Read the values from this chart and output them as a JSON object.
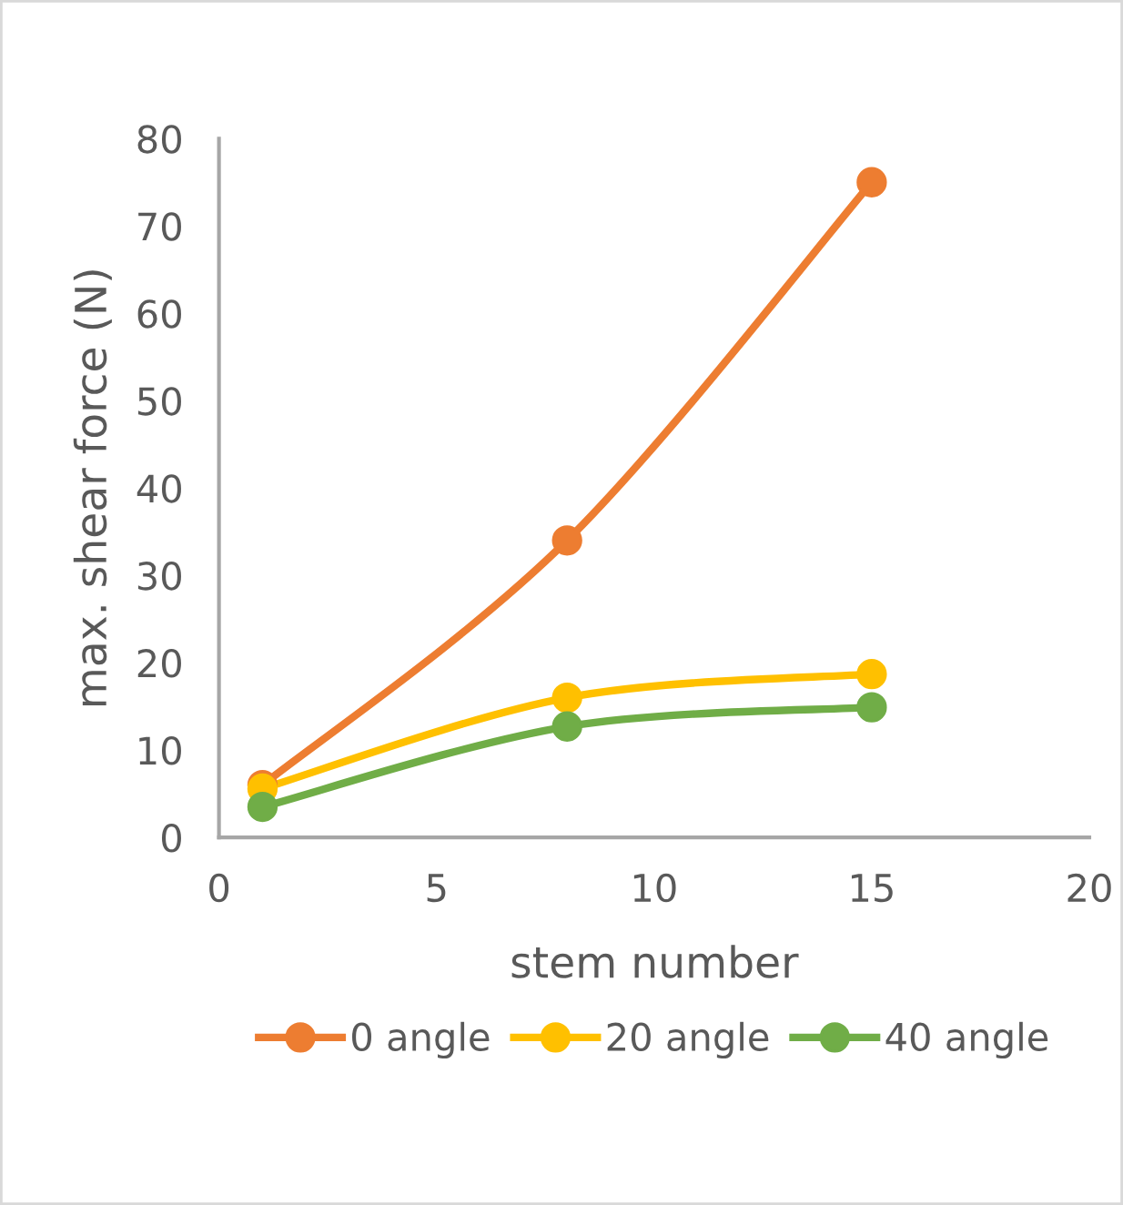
{
  "chart_data": {
    "type": "line",
    "xlabel": "stem number",
    "ylabel": "max. shear force (N)",
    "x": [
      1,
      8,
      15
    ],
    "series": [
      {
        "name": "0 angle",
        "color": "#ed7d31",
        "values": [
          6,
          34,
          75
        ]
      },
      {
        "name": "20 angle",
        "color": "#ffc000",
        "values": [
          5.6,
          16,
          18.7
        ]
      },
      {
        "name": "40 angle",
        "color": "#70ad47",
        "values": [
          3.5,
          12.7,
          14.9
        ]
      }
    ],
    "xlim": [
      0,
      20
    ],
    "xticks": [
      0,
      5,
      10,
      15,
      20
    ],
    "ylim": [
      0,
      80
    ],
    "yticks": [
      0,
      10,
      20,
      30,
      40,
      50,
      60,
      70,
      80
    ],
    "grid": false,
    "legend": "bottom",
    "marker": "circle",
    "line_style": "solid"
  }
}
